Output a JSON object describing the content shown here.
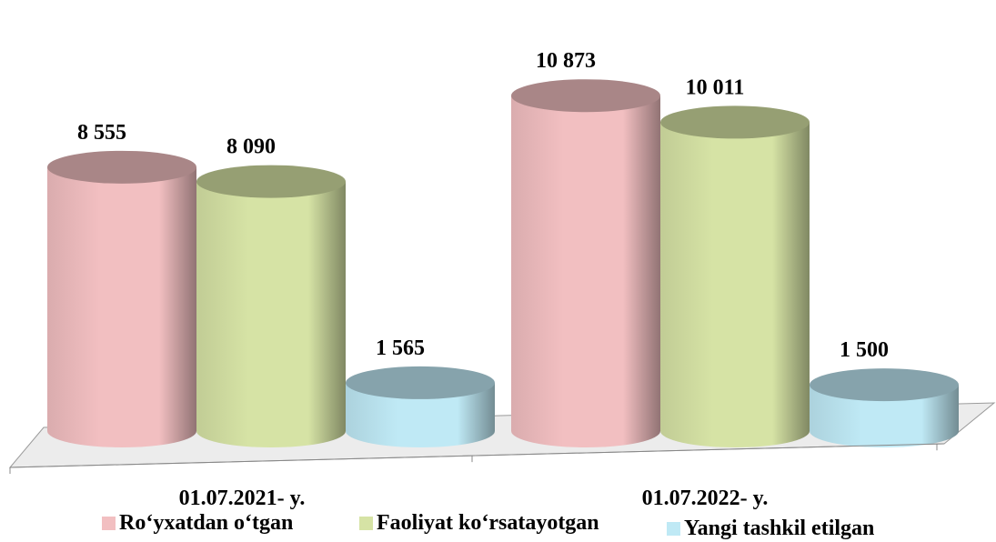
{
  "chart_data": {
    "type": "bar",
    "style": "3d-cylinder",
    "categories": [
      "01.07.2021- y.",
      "01.07.2022- y."
    ],
    "series": [
      {
        "name": "Ro‘yxatdan o‘tgan",
        "values": [
          8555,
          10873
        ],
        "labels": [
          "8 555",
          "10 873"
        ],
        "color": "#f2bfc1"
      },
      {
        "name": "Faoliyat ko‘rsatayotgan",
        "values": [
          8090,
          10011
        ],
        "labels": [
          "8 090",
          "10 011"
        ],
        "color": "#d6e3a5"
      },
      {
        "name": "Yangi tashkil etilgan",
        "values": [
          1565,
          1500
        ],
        "labels": [
          "1 565",
          "1 500"
        ],
        "color": "#bfe9f5"
      }
    ],
    "legend_position": "bottom",
    "grid": false,
    "title": "",
    "xlabel": "",
    "ylabel": ""
  }
}
